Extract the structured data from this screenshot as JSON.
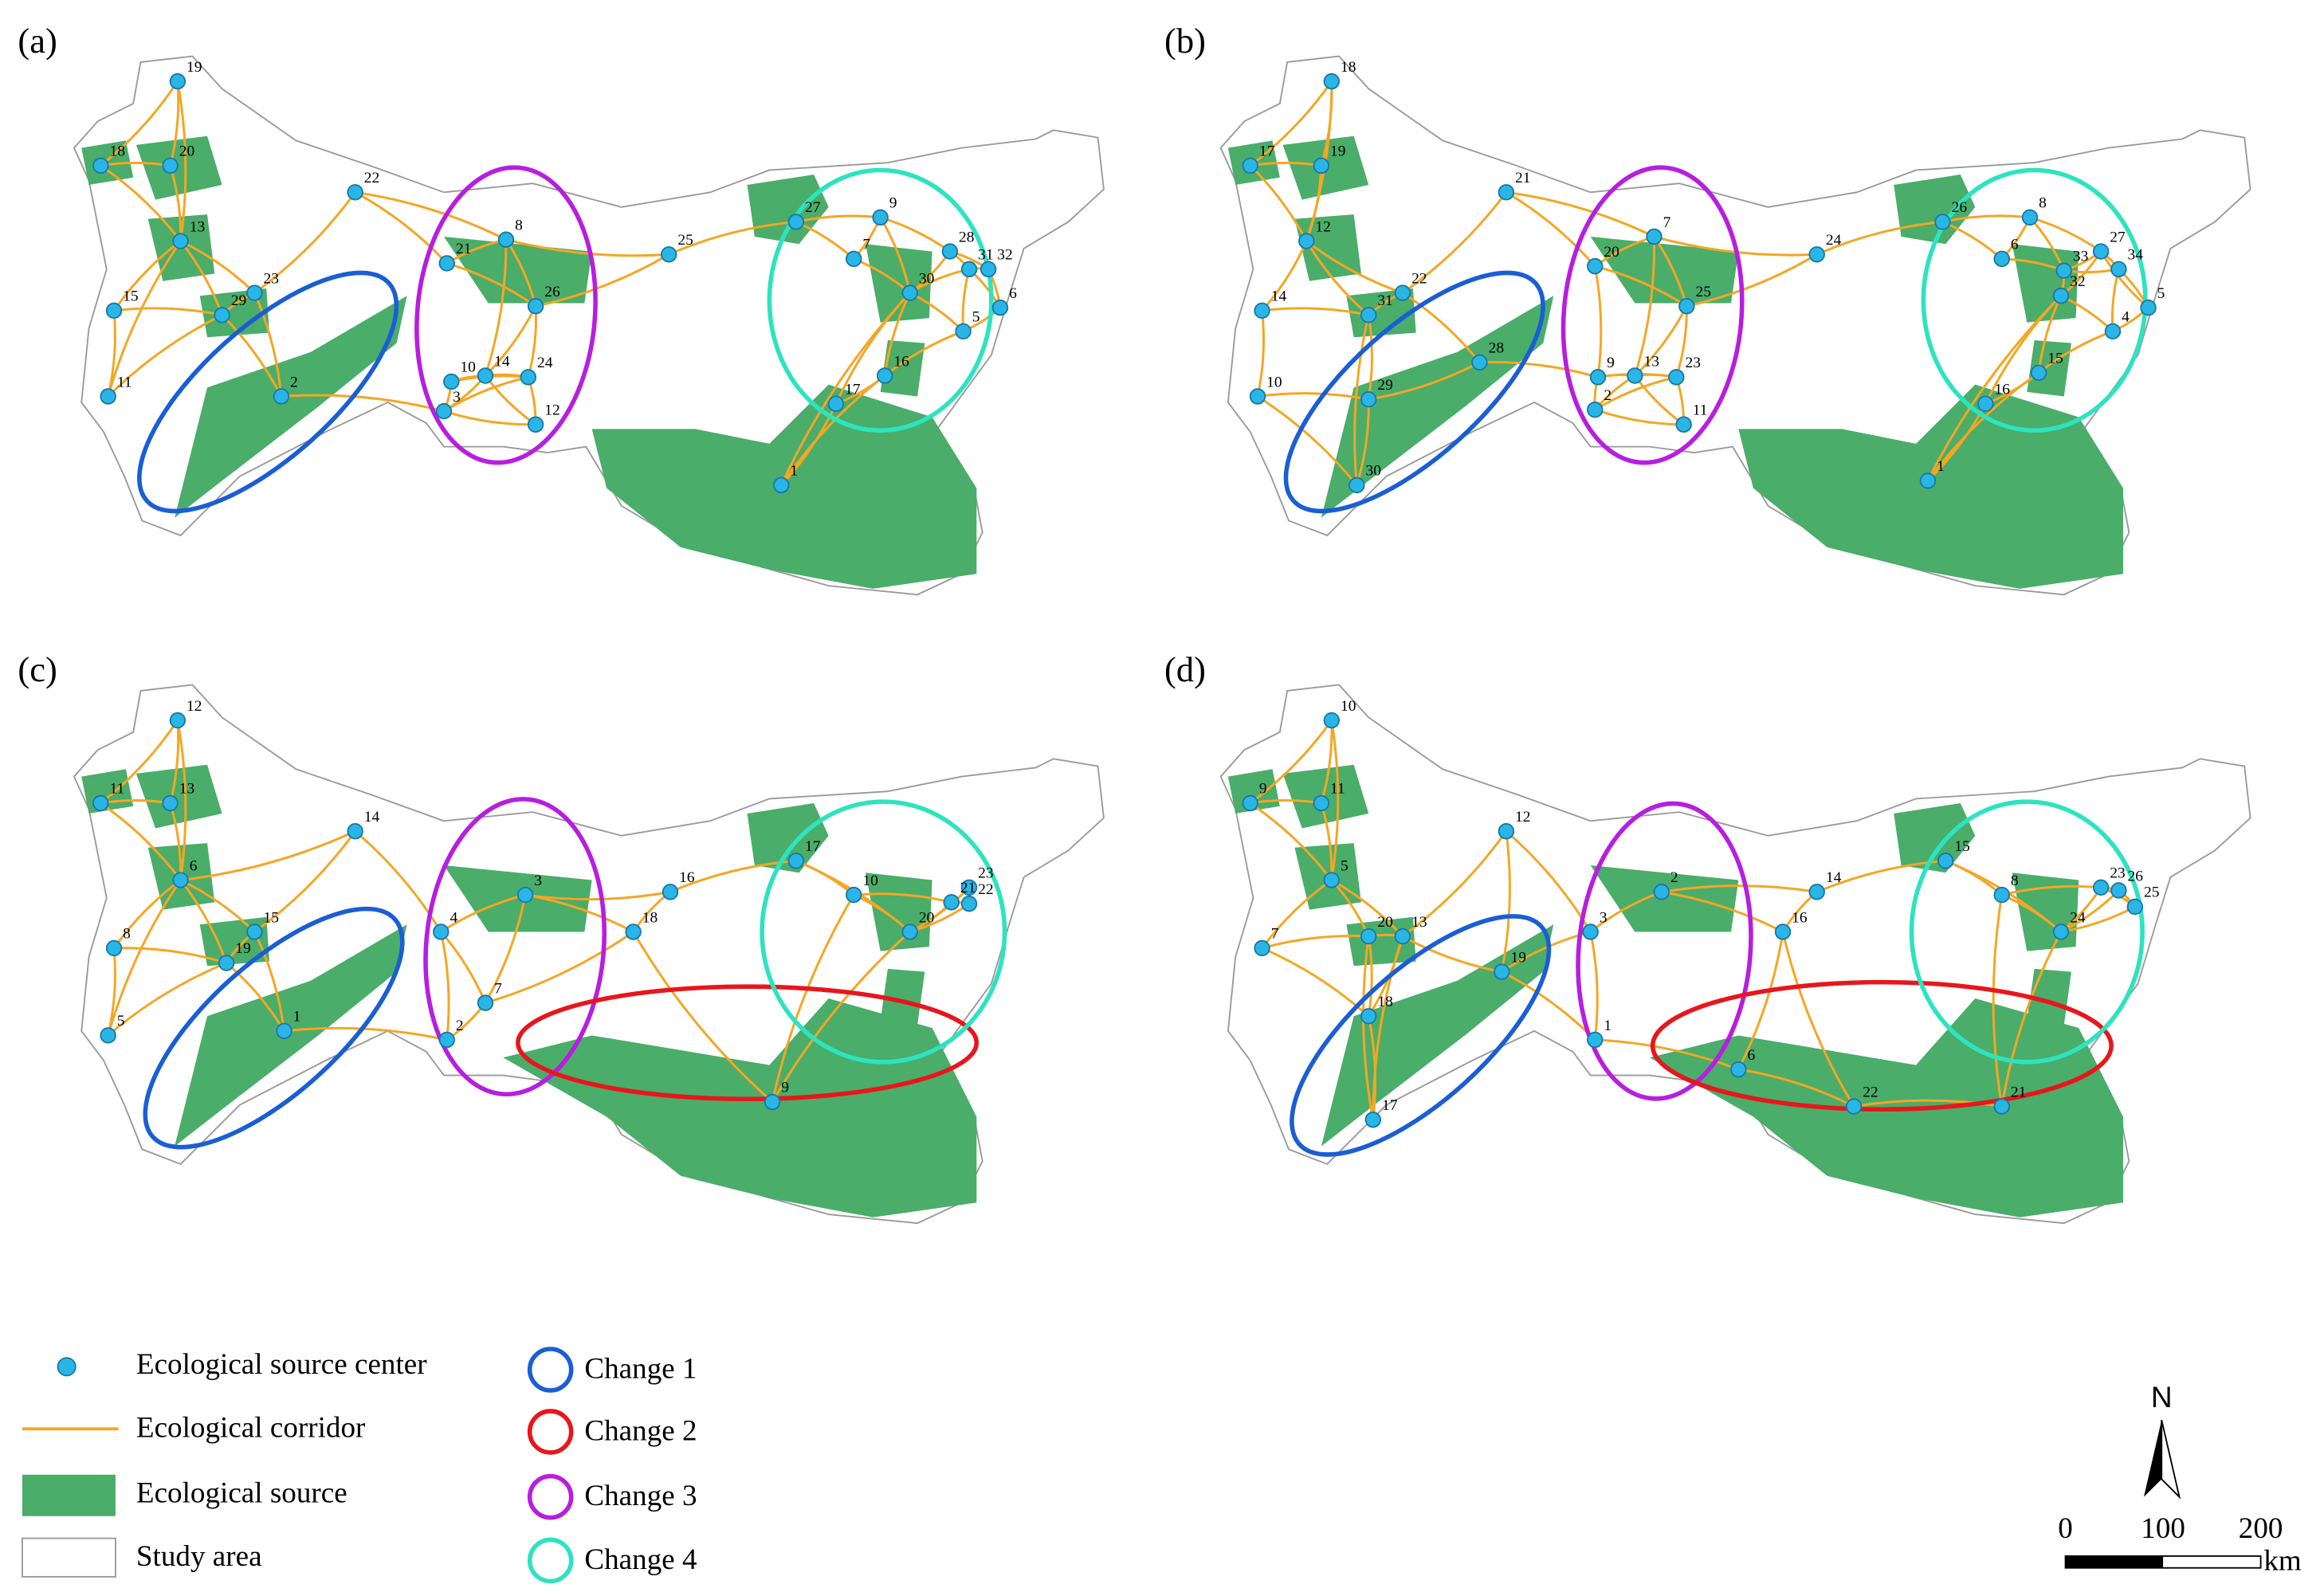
{
  "panels": [
    {
      "label": "(a)",
      "nodes": [
        "19",
        "18",
        "20",
        "13",
        "22",
        "15",
        "29",
        "23",
        "11",
        "2",
        "21",
        "8",
        "26",
        "10",
        "14",
        "24",
        "3",
        "12",
        "25",
        "27",
        "9",
        "7",
        "28",
        "31",
        "32",
        "30",
        "6",
        "5",
        "16",
        "17",
        "1"
      ]
    },
    {
      "label": "(b)",
      "nodes": [
        "18",
        "17",
        "19",
        "12",
        "21",
        "14",
        "31",
        "22",
        "10",
        "29",
        "28",
        "30",
        "20",
        "7",
        "25",
        "2",
        "9",
        "13",
        "23",
        "11",
        "24",
        "26",
        "8",
        "6",
        "27",
        "34",
        "33",
        "32",
        "5",
        "4",
        "15",
        "16",
        "1"
      ]
    },
    {
      "label": "(c)",
      "nodes": [
        "12",
        "11",
        "13",
        "6",
        "14",
        "8",
        "19",
        "15",
        "5",
        "1",
        "4",
        "3",
        "7",
        "2",
        "18",
        "16",
        "17",
        "10",
        "23",
        "21",
        "22",
        "20",
        "9"
      ]
    },
    {
      "label": "(d)",
      "nodes": [
        "10",
        "9",
        "11",
        "5",
        "12",
        "7",
        "20",
        "13",
        "18",
        "19",
        "17",
        "3",
        "2",
        "1",
        "16",
        "14",
        "15",
        "8",
        "23",
        "26",
        "25",
        "24",
        "6",
        "22",
        "21"
      ]
    }
  ],
  "legend": [
    "Ecological source center",
    "Ecological corridor",
    "Ecological source",
    "Study area",
    "Change 1",
    "Change 2",
    "Change 3",
    "Change 4"
  ],
  "scale_bar": {
    "ticks": [
      0,
      100,
      200
    ],
    "unit": "km"
  },
  "north": "N"
}
